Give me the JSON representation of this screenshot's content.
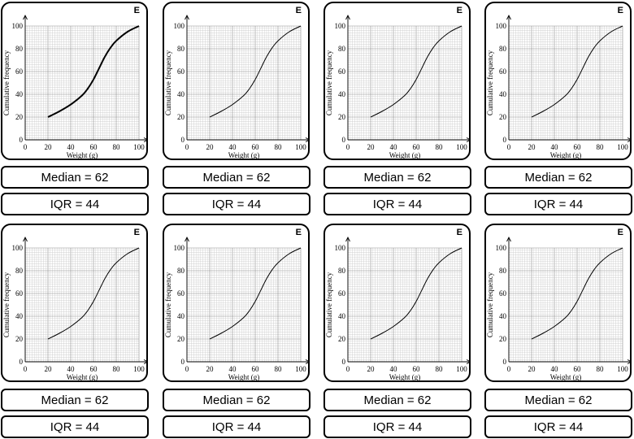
{
  "card_label": "E",
  "colors": {
    "grid_minor": "#c8c8c8",
    "grid_major": "#8a8a8a",
    "curve": "#000000",
    "axis": "#000000"
  },
  "chart_data": {
    "type": "line",
    "title": "",
    "xlabel": "Weight (g)",
    "ylabel": "Cumulative frequency",
    "xlim": [
      0,
      100
    ],
    "ylim": [
      0,
      100
    ],
    "x_ticks": [
      "0",
      "20",
      "40",
      "60",
      "80",
      "100"
    ],
    "y_ticks": [
      "0",
      "20",
      "40",
      "60",
      "80",
      "100"
    ],
    "grid": true,
    "series": [
      {
        "name": "Cumulative frequency",
        "x": [
          20,
          30,
          40,
          50,
          55,
          60,
          65,
          70,
          75,
          80,
          90,
          100
        ],
        "y": [
          20,
          25,
          31,
          39,
          45,
          53,
          63,
          73,
          81,
          87,
          95,
          100
        ]
      }
    ]
  },
  "cards": [
    {
      "median": "Median = 62",
      "iqr": "IQR = 44"
    },
    {
      "median": "Median = 62",
      "iqr": "IQR = 44"
    },
    {
      "median": "Median = 62",
      "iqr": "IQR = 44"
    },
    {
      "median": "Median = 62",
      "iqr": "IQR = 44"
    },
    {
      "median": "Median = 62",
      "iqr": "IQR = 44"
    },
    {
      "median": "Median = 62",
      "iqr": "IQR = 44"
    },
    {
      "median": "Median = 62",
      "iqr": "IQR = 44"
    },
    {
      "median": "Median = 62",
      "iqr": "IQR = 44"
    }
  ]
}
